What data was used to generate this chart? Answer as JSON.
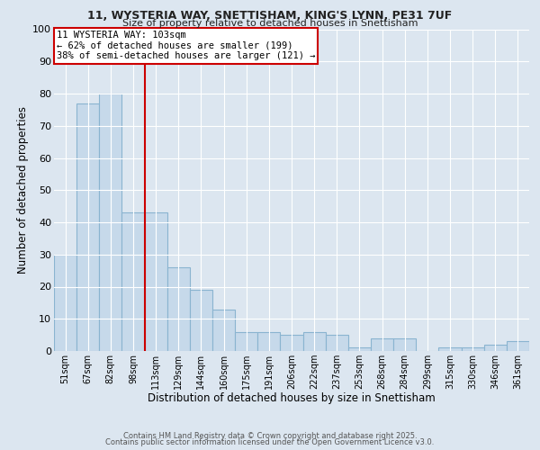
{
  "title_line1": "11, WYSTERIA WAY, SNETTISHAM, KING'S LYNN, PE31 7UF",
  "title_line2": "Size of property relative to detached houses in Snettisham",
  "xlabel": "Distribution of detached houses by size in Snettisham",
  "ylabel": "Number of detached properties",
  "categories": [
    "51sqm",
    "67sqm",
    "82sqm",
    "98sqm",
    "113sqm",
    "129sqm",
    "144sqm",
    "160sqm",
    "175sqm",
    "191sqm",
    "206sqm",
    "222sqm",
    "237sqm",
    "253sqm",
    "268sqm",
    "284sqm",
    "299sqm",
    "315sqm",
    "330sqm",
    "346sqm",
    "361sqm"
  ],
  "values": [
    30,
    77,
    80,
    43,
    43,
    26,
    19,
    13,
    6,
    6,
    5,
    6,
    5,
    1,
    4,
    4,
    0,
    1,
    1,
    2,
    3
  ],
  "bar_color": "#c6d9ea",
  "bar_edge_color": "#8ab4d0",
  "background_color": "#dce6f0",
  "grid_color": "#ffffff",
  "vline_color": "#cc0000",
  "vline_x_index": 3,
  "annotation_text": "11 WYSTERIA WAY: 103sqm\n← 62% of detached houses are smaller (199)\n38% of semi-detached houses are larger (121) →",
  "annotation_box_color": "#ffffff",
  "annotation_box_edge_color": "#cc0000",
  "ylim": [
    0,
    100
  ],
  "yticks": [
    0,
    10,
    20,
    30,
    40,
    50,
    60,
    70,
    80,
    90,
    100
  ],
  "footer_line1": "Contains HM Land Registry data © Crown copyright and database right 2025.",
  "footer_line2": "Contains public sector information licensed under the Open Government Licence v3.0."
}
